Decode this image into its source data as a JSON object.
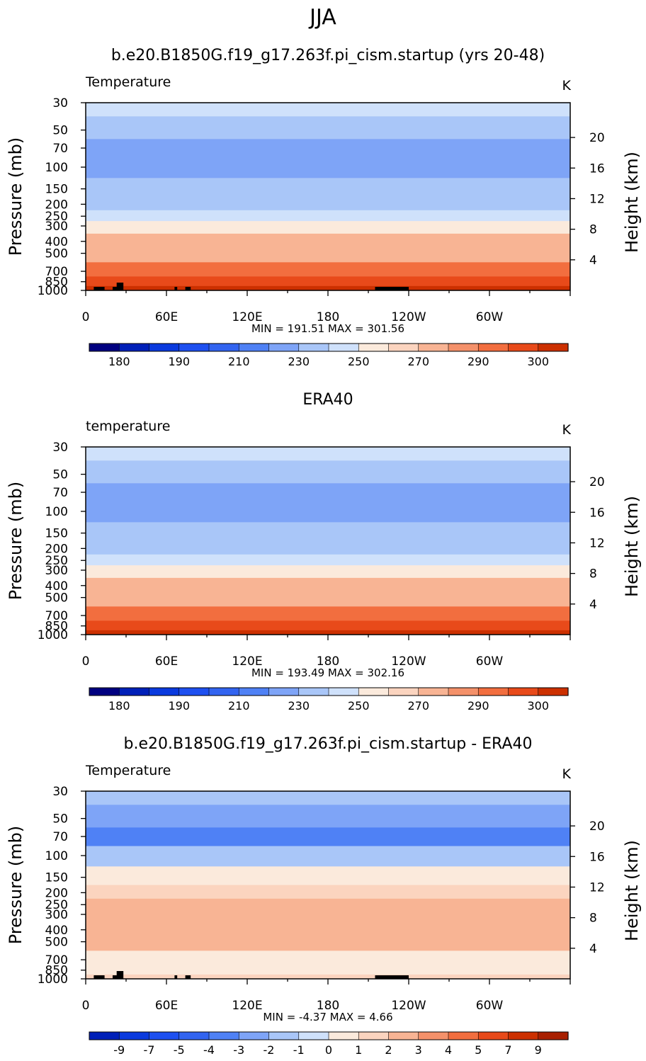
{
  "season": "JJA",
  "chart_data": [
    {
      "type": "heatmap",
      "title": "b.e20.B1850G.f19_g17.263f.pi_cism.startup (yrs 20-48)",
      "left_label": "Temperature",
      "units": "K",
      "ylabel": "Pressure (mb)",
      "ylabel_right": "Height (km)",
      "min_max": "MIN = 191.51   MAX = 301.56",
      "topography": true,
      "levels": [
        {
          "mb": 30,
          "T": 226
        },
        {
          "mb": 50,
          "T": 213
        },
        {
          "mb": 70,
          "T": 205
        },
        {
          "mb": 100,
          "T": 203
        },
        {
          "mb": 150,
          "T": 212
        },
        {
          "mb": 200,
          "T": 219
        },
        {
          "mb": 250,
          "T": 226
        },
        {
          "mb": 300,
          "T": 237
        },
        {
          "mb": 400,
          "T": 250
        },
        {
          "mb": 500,
          "T": 259
        },
        {
          "mb": 700,
          "T": 273
        },
        {
          "mb": 850,
          "T": 282
        },
        {
          "mb": 1000,
          "T": 291
        }
      ]
    },
    {
      "type": "heatmap",
      "title": "ERA40",
      "left_label": "temperature",
      "units": "K",
      "ylabel": "Pressure (mb)",
      "ylabel_right": "Height (km)",
      "min_max": "MIN = 193.49   MAX = 302.16",
      "topography": false,
      "levels": [
        {
          "mb": 30,
          "T": 225
        },
        {
          "mb": 50,
          "T": 213
        },
        {
          "mb": 70,
          "T": 205
        },
        {
          "mb": 100,
          "T": 202
        },
        {
          "mb": 150,
          "T": 211
        },
        {
          "mb": 200,
          "T": 218
        },
        {
          "mb": 250,
          "T": 226
        },
        {
          "mb": 300,
          "T": 238
        },
        {
          "mb": 400,
          "T": 251
        },
        {
          "mb": 500,
          "T": 259
        },
        {
          "mb": 700,
          "T": 274
        },
        {
          "mb": 850,
          "T": 283
        },
        {
          "mb": 1000,
          "T": 292
        }
      ]
    },
    {
      "type": "heatmap",
      "title": "b.e20.B1850G.f19_g17.263f.pi_cism.startup - ERA40",
      "left_label": "Temperature",
      "units": "K",
      "ylabel": "Pressure (mb)",
      "ylabel_right": "Height (km)",
      "min_max": "MIN =    -4.37   MAX =     4.66",
      "topography": true,
      "levels": [
        {
          "mb": 30,
          "T": -1.5
        },
        {
          "mb": 50,
          "T": -2.5
        },
        {
          "mb": 70,
          "T": -3.5
        },
        {
          "mb": 100,
          "T": -1.5
        },
        {
          "mb": 150,
          "T": 0.5
        },
        {
          "mb": 200,
          "T": 1.5
        },
        {
          "mb": 250,
          "T": 2.5
        },
        {
          "mb": 300,
          "T": 2.5
        },
        {
          "mb": 400,
          "T": 2.5
        },
        {
          "mb": 500,
          "T": 2.5
        },
        {
          "mb": 700,
          "T": 0.5
        },
        {
          "mb": 850,
          "T": 0.5
        },
        {
          "mb": 1000,
          "T": 1.5
        }
      ]
    }
  ],
  "axes": {
    "x_ticks": [
      "0",
      "60E",
      "120E",
      "180",
      "120W",
      "60W"
    ],
    "x_tick_values": [
      0,
      60,
      120,
      180,
      240,
      300
    ],
    "x_range": [
      0,
      360
    ],
    "p_ticks": [
      30,
      50,
      70,
      100,
      150,
      200,
      250,
      300,
      400,
      500,
      700,
      850,
      1000
    ],
    "p_range": [
      1000,
      30
    ],
    "scale": "log",
    "height_ticks": [
      4,
      8,
      12,
      16,
      20
    ]
  },
  "colorbars": [
    {
      "labels": [
        "180",
        "190",
        "210",
        "230",
        "250",
        "270",
        "290",
        "300"
      ],
      "levels": [
        170,
        180,
        185,
        190,
        200,
        210,
        220,
        230,
        240,
        250,
        260,
        270,
        280,
        290,
        295,
        300
      ]
    },
    {
      "labels": [
        "180",
        "190",
        "210",
        "230",
        "250",
        "270",
        "290",
        "300"
      ],
      "levels": [
        170,
        180,
        185,
        190,
        200,
        210,
        220,
        230,
        240,
        250,
        260,
        270,
        280,
        290,
        295,
        300
      ]
    },
    {
      "labels": [
        "-9",
        "-7",
        "-5",
        "-4",
        "-3",
        "-2",
        "-1",
        "0",
        "1",
        "2",
        "3",
        "4",
        "5",
        "7",
        "9"
      ],
      "levels": [
        -9,
        -7,
        -5,
        -4,
        -3,
        -2,
        -1,
        0,
        1,
        2,
        3,
        4,
        5,
        7,
        9
      ]
    }
  ],
  "palette": [
    "#000080",
    "#0020b8",
    "#0a3ade",
    "#1e50f0",
    "#3264f0",
    "#4f81f5",
    "#7ea4f7",
    "#a9c6f8",
    "#cfe1fb",
    "#fbeadc",
    "#fbd4bf",
    "#f8b494",
    "#f4916a",
    "#f26e3f",
    "#e84a1a",
    "#cc3000",
    "#a81f00",
    "#800000"
  ],
  "topo_blocks": [
    [
      6,
      14
    ],
    [
      20,
      26
    ],
    [
      23,
      28
    ],
    [
      66,
      68
    ],
    [
      74,
      78
    ],
    [
      215,
      240
    ]
  ]
}
